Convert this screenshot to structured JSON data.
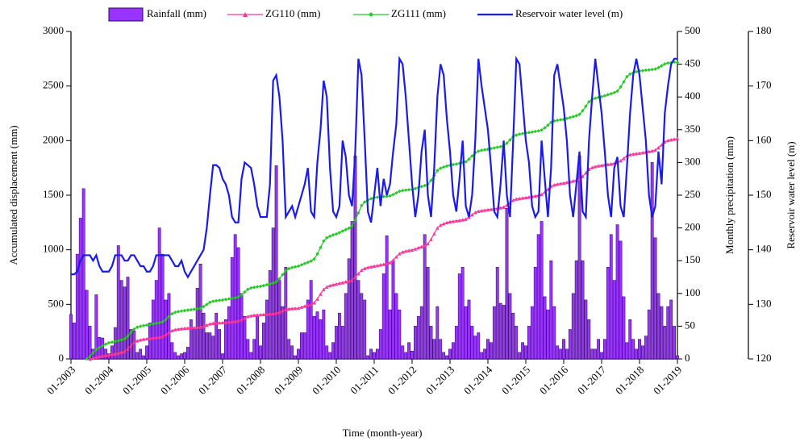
{
  "chart_data": {
    "type": "combo",
    "xlabel": "Time (month-year)",
    "ylabel": "Accumulated displacement (mm)",
    "y2label": "Monthly precipitation (mm)",
    "y3label": "Reservoir water level (m)",
    "ylim": [
      0,
      3000
    ],
    "yticks": [
      0,
      500,
      1000,
      1500,
      2000,
      2500,
      3000
    ],
    "y2lim": [
      0,
      500
    ],
    "y2ticks": [
      0,
      50,
      100,
      150,
      200,
      250,
      300,
      350,
      400,
      450,
      500
    ],
    "y3lim": [
      120,
      180
    ],
    "y3ticks": [
      120,
      130,
      140,
      150,
      160,
      170,
      180
    ],
    "x": [
      "01-2003",
      null,
      null,
      null,
      null,
      null,
      null,
      null,
      null,
      null,
      null,
      null,
      "01-2004",
      null,
      null,
      null,
      null,
      null,
      null,
      null,
      null,
      null,
      null,
      null,
      "01-2005",
      null,
      null,
      null,
      null,
      null,
      null,
      null,
      null,
      null,
      null,
      null,
      "01-2006",
      null,
      null,
      null,
      null,
      null,
      null,
      null,
      null,
      null,
      null,
      null,
      "01-2007",
      null,
      null,
      null,
      null,
      null,
      null,
      null,
      null,
      null,
      null,
      null,
      "01-2008",
      null,
      null,
      null,
      null,
      null,
      null,
      null,
      null,
      null,
      null,
      null,
      "01-2009",
      null,
      null,
      null,
      null,
      null,
      null,
      null,
      null,
      null,
      null,
      null,
      "01-2010",
      null,
      null,
      null,
      null,
      null,
      null,
      null,
      null,
      null,
      null,
      null,
      "01-2011",
      null,
      null,
      null,
      null,
      null,
      null,
      null,
      null,
      null,
      null,
      null,
      "01-2012",
      null,
      null,
      null,
      null,
      null,
      null,
      null,
      null,
      null,
      null,
      null,
      "01-2013",
      null,
      null,
      null,
      null,
      null,
      null,
      null,
      null,
      null,
      null,
      null,
      "01-2014",
      null,
      null,
      null,
      null,
      null,
      null,
      null,
      null,
      null,
      null,
      null,
      "01-2015",
      null,
      null,
      null,
      null,
      null,
      null,
      null,
      null,
      null,
      null,
      null,
      "01-2016",
      null,
      null,
      null,
      null,
      null,
      null,
      null,
      null,
      null,
      null,
      null,
      "01-2017",
      null,
      null,
      null,
      null,
      null,
      null,
      null,
      null,
      null,
      null,
      null,
      "01-2018",
      null,
      null,
      null,
      null,
      null,
      null,
      null,
      null,
      null,
      null,
      null,
      "01-2019"
    ],
    "series": [
      {
        "name": "Rainfall (mm)",
        "type": "bar",
        "axis": "y2",
        "color": "#9933ff",
        "values": [
          68,
          55,
          160,
          215,
          260,
          105,
          50,
          15,
          98,
          33,
          32,
          15,
          8,
          20,
          48,
          173,
          120,
          110,
          125,
          45,
          43,
          10,
          15,
          5,
          20,
          55,
          90,
          120,
          200,
          160,
          90,
          100,
          25,
          10,
          5,
          8,
          10,
          18,
          60,
          45,
          108,
          145,
          70,
          40,
          40,
          35,
          70,
          45,
          8,
          60,
          80,
          155,
          190,
          170,
          100,
          65,
          30,
          10,
          30,
          65,
          20,
          55,
          90,
          135,
          200,
          295,
          120,
          80,
          140,
          30,
          20,
          5,
          15,
          40,
          40,
          90,
          120,
          65,
          72,
          60,
          75,
          20,
          10,
          25,
          50,
          70,
          50,
          100,
          153,
          210,
          310,
          120,
          100,
          90,
          5,
          15,
          10,
          15,
          45,
          130,
          188,
          75,
          150,
          100,
          75,
          20,
          10,
          25,
          12,
          50,
          65,
          80,
          190,
          140,
          50,
          30,
          80,
          30,
          10,
          5,
          15,
          25,
          50,
          130,
          140,
          80,
          90,
          50,
          35,
          40,
          10,
          15,
          30,
          25,
          80,
          140,
          85,
          82,
          230,
          100,
          70,
          50,
          10,
          25,
          20,
          50,
          80,
          140,
          190,
          210,
          95,
          75,
          150,
          80,
          20,
          15,
          30,
          15,
          45,
          100,
          150,
          310,
          150,
          90,
          60,
          15,
          15,
          30,
          10,
          30,
          140,
          190,
          120,
          205,
          180,
          95,
          25,
          60,
          30,
          15,
          30,
          20,
          35,
          75,
          300,
          185,
          100,
          80,
          50,
          80,
          90,
          50,
          5
        ]
      },
      {
        "name": "ZG110 (mm)",
        "type": "line",
        "marker": "triangle",
        "color": "#ff3399",
        "values": [
          null,
          null,
          null,
          null,
          null,
          null,
          0,
          8,
          16,
          22,
          28,
          33,
          37,
          43,
          49,
          55,
          61,
          70,
          93,
          123,
          152,
          167,
          175,
          181,
          185,
          189,
          193,
          197,
          200,
          206,
          221,
          241,
          260,
          269,
          274,
          278,
          281,
          283,
          285,
          287,
          289,
          292,
          301,
          311,
          322,
          327,
          329,
          331,
          333,
          336,
          339,
          342,
          345,
          349,
          361,
          375,
          390,
          397,
          401,
          404,
          406,
          408,
          411,
          413,
          416,
          419,
          429,
          441,
          453,
          459,
          462,
          464,
          466,
          475,
          484,
          493,
          501,
          515,
          550,
          594,
          638,
          660,
          672,
          680,
          687,
          694,
          700,
          707,
          713,
          723,
          749,
          782,
          814,
          830,
          839,
          845,
          850,
          856,
          862,
          868,
          874,
          883,
          906,
          936,
          965,
          980,
          988,
          994,
          998,
          1008,
          1019,
          1029,
          1039,
          1055,
          1096,
          1148,
          1200,
          1226,
          1239,
          1249,
          1257,
          1261,
          1266,
          1270,
          1275,
          1281,
          1299,
          1321,
          1343,
          1354,
          1359,
          1364,
          1367,
          1371,
          1376,
          1380,
          1385,
          1391,
          1409,
          1431,
          1454,
          1465,
          1470,
          1475,
          1478,
          1483,
          1489,
          1494,
          1499,
          1507,
          1529,
          1555,
          1582,
          1595,
          1602,
          1607,
          1611,
          1618,
          1624,
          1631,
          1637,
          1647,
          1673,
          1706,
          1738,
          1754,
          1763,
          1769,
          1774,
          1778,
          1783,
          1787,
          1792,
          1798,
          1816,
          1838,
          1861,
          1872,
          1877,
          1882,
          1885,
          1890,
          1896,
          1901,
          1906,
          1914,
          1936,
          1962,
          1989,
          2002,
          2009,
          2014,
          2018
        ]
      },
      {
        "name": "ZG111 (mm)",
        "type": "line",
        "marker": "diamond",
        "color": "#22cc22",
        "values": [
          null,
          null,
          null,
          null,
          null,
          0,
          25,
          55,
          85,
          105,
          120,
          135,
          148,
          154,
          161,
          167,
          174,
          184,
          210,
          242,
          274,
          291,
          299,
          305,
          310,
          315,
          321,
          326,
          331,
          339,
          361,
          387,
          414,
          427,
          434,
          439,
          443,
          447,
          451,
          455,
          459,
          464,
          480,
          499,
          519,
          528,
          533,
          537,
          540,
          545,
          550,
          555,
          560,
          568,
          588,
          613,
          638,
          650,
          656,
          661,
          665,
          672,
          680,
          687,
          695,
          706,
          735,
          772,
          809,
          828,
          837,
          844,
          850,
          862,
          874,
          885,
          897,
          915,
          962,
          1021,
          1080,
          1110,
          1124,
          1136,
          1145,
          1158,
          1172,
          1185,
          1198,
          1218,
          1272,
          1338,
          1405,
          1438,
          1455,
          1468,
          1478,
          1481,
          1484,
          1487,
          1490,
          1494,
          1506,
          1521,
          1536,
          1543,
          1547,
          1550,
          1552,
          1561,
          1570,
          1579,
          1588,
          1601,
          1636,
          1681,
          1725,
          1747,
          1758,
          1767,
          1774,
          1780,
          1786,
          1792,
          1798,
          1806,
          1830,
          1859,
          1889,
          1903,
          1911,
          1917,
          1921,
          1927,
          1933,
          1939,
          1945,
          1954,
          1977,
          2007,
          2036,
          2051,
          2059,
          2065,
          2069,
          2074,
          2079,
          2084,
          2089,
          2097,
          2117,
          2142,
          2167,
          2180,
          2186,
          2191,
          2195,
          2203,
          2212,
          2220,
          2228,
          2241,
          2274,
          2315,
          2356,
          2377,
          2388,
          2396,
          2402,
          2411,
          2421,
          2430,
          2440,
          2454,
          2492,
          2539,
          2586,
          2610,
          2621,
          2631,
          2638,
          2641,
          2645,
          2648,
          2651,
          2656,
          2669,
          2686,
          2702,
          2710,
          2714,
          2720,
          2715
        ]
      },
      {
        "name": "Reservoir water level (m)",
        "type": "line",
        "axis": "y3",
        "color": "#1a1aee",
        "values": [
          135.5,
          135.5,
          136,
          138,
          139,
          139,
          139,
          138,
          139,
          137,
          136,
          136,
          136,
          137,
          139,
          139,
          139,
          138,
          138,
          139,
          139,
          138,
          137,
          137,
          136,
          136,
          137,
          139,
          139,
          139,
          139,
          139,
          138,
          137,
          137,
          138,
          136,
          135,
          136,
          137,
          138,
          139,
          140,
          144,
          150,
          155.5,
          155.5,
          155,
          153,
          152,
          150,
          146,
          145,
          145,
          153,
          156,
          155.5,
          155,
          152,
          148,
          146,
          146,
          146,
          152,
          171,
          172,
          168,
          160,
          146,
          147,
          148,
          146,
          148,
          150,
          152,
          155,
          147,
          146,
          156,
          162,
          171,
          168,
          155,
          147,
          146,
          148,
          160,
          157,
          150,
          148,
          158,
          175,
          172,
          160,
          147,
          145,
          150,
          155,
          148,
          153,
          150,
          152,
          158,
          163,
          175,
          174,
          168,
          160,
          152,
          146,
          150,
          158,
          162,
          150,
          146,
          155,
          168,
          174,
          172,
          164,
          158,
          150,
          147,
          153,
          160,
          148,
          146,
          150,
          160,
          175,
          170,
          166,
          162,
          155,
          147,
          146,
          152,
          160,
          150,
          146,
          160,
          175,
          174,
          167,
          160,
          156,
          148,
          146,
          147,
          160,
          153,
          146,
          155,
          172,
          174,
          170,
          166,
          160,
          150,
          146,
          152,
          158,
          147,
          146,
          160,
          168,
          175,
          170,
          165,
          158,
          150,
          146,
          155,
          157,
          148,
          146,
          155,
          165,
          172,
          175,
          172,
          166,
          160,
          150,
          146,
          148,
          158,
          152,
          165,
          170,
          174,
          175,
          175
        ]
      }
    ]
  }
}
